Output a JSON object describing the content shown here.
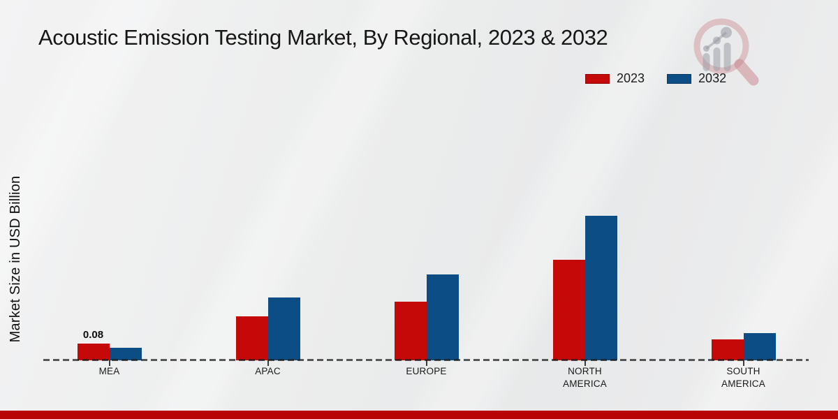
{
  "header": {
    "title": "Acoustic Emission Testing Market, By Regional, 2023 & 2032"
  },
  "legend": {
    "position": "top-right",
    "items": [
      {
        "label": "2023",
        "color": "#c50808"
      },
      {
        "label": "2032",
        "color": "#0d4d86"
      }
    ]
  },
  "axes": {
    "y_label": "Market Size in USD Billion"
  },
  "chart_data": {
    "type": "bar",
    "title": "Acoustic Emission Testing Market, By Regional, 2023 & 2032",
    "xlabel": "",
    "ylabel": "Market Size in USD Billion",
    "ylim": [
      0,
      0.8
    ],
    "grid": false,
    "legend_position": "top-right",
    "categories": [
      "MEA",
      "APAC",
      "EUROPE",
      "NORTH AMERICA",
      "SOUTH AMERICA"
    ],
    "category_label_lines": [
      [
        "MEA"
      ],
      [
        "APAC"
      ],
      [
        "EUROPE"
      ],
      [
        "NORTH",
        "AMERICA"
      ],
      [
        "SOUTH",
        "AMERICA"
      ]
    ],
    "series": [
      {
        "name": "2023",
        "color": "#c50808",
        "values": [
          0.08,
          0.21,
          0.28,
          0.48,
          0.1
        ]
      },
      {
        "name": "2032",
        "color": "#0d4d86",
        "values": [
          0.06,
          0.3,
          0.41,
          0.69,
          0.13
        ]
      }
    ],
    "data_labels": [
      {
        "category_index": 0,
        "series_index": 0,
        "text": "0.08"
      }
    ],
    "units": "USD Billion"
  },
  "branding": {
    "watermark_icon": "market-research-future-logo",
    "footer_color": "#b80404"
  }
}
